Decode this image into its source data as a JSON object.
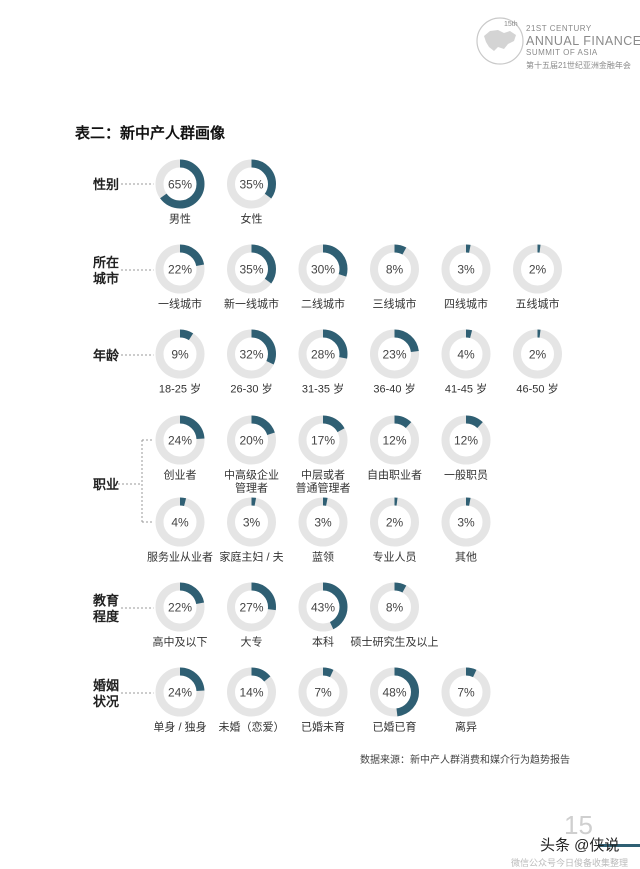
{
  "header": {
    "logo_line1": "21ST CENTURY",
    "logo_line2": "ANNUAL FINANCE",
    "logo_line3": "SUMMIT OF ASIA",
    "logo_line4": "第十五届21世纪亚洲金融年会",
    "logo_badge": "15th"
  },
  "title": "表二：新中产人群画像",
  "source": "数据来源：新中产人群消费和媒介行为趋势报告",
  "page_number": "15",
  "watermark": {
    "line1": "头条 @侠说",
    "line2": "微信公众号今日俊备收集整理"
  },
  "colors": {
    "fill": "#2f5f73",
    "track": "#e5e5e5"
  },
  "chart_data": {
    "type": "donut",
    "groups": [
      {
        "label": "性别",
        "items": [
          {
            "label": "男性",
            "value": 65
          },
          {
            "label": "女性",
            "value": 35
          }
        ]
      },
      {
        "label": "所在\n城市",
        "items": [
          {
            "label": "一线城市",
            "value": 22
          },
          {
            "label": "新一线城市",
            "value": 35
          },
          {
            "label": "二线城市",
            "value": 30
          },
          {
            "label": "三线城市",
            "value": 8
          },
          {
            "label": "四线城市",
            "value": 3
          },
          {
            "label": "五线城市",
            "value": 2
          }
        ]
      },
      {
        "label": "年龄",
        "items": [
          {
            "label": "18-25 岁",
            "value": 9
          },
          {
            "label": "26-30 岁",
            "value": 32
          },
          {
            "label": "31-35 岁",
            "value": 28
          },
          {
            "label": "36-40 岁",
            "value": 23
          },
          {
            "label": "41-45 岁",
            "value": 4
          },
          {
            "label": "46-50 岁",
            "value": 2
          }
        ]
      },
      {
        "label": "职业",
        "items": [
          {
            "label": "创业者",
            "value": 24
          },
          {
            "label": "中高级企业\n管理者",
            "value": 20
          },
          {
            "label": "中层或者\n普通管理者",
            "value": 17
          },
          {
            "label": "自由职业者",
            "value": 12
          },
          {
            "label": "一般职员",
            "value": 12
          },
          {
            "label": "服务业从业者",
            "value": 4
          },
          {
            "label": "家庭主妇 / 夫",
            "value": 3
          },
          {
            "label": "蓝领",
            "value": 3
          },
          {
            "label": "专业人员",
            "value": 2
          },
          {
            "label": "其他",
            "value": 3
          }
        ]
      },
      {
        "label": "教育\n程度",
        "items": [
          {
            "label": "高中及以下",
            "value": 22
          },
          {
            "label": "大专",
            "value": 27
          },
          {
            "label": "本科",
            "value": 43
          },
          {
            "label": "硕士研究生及以上",
            "value": 8
          }
        ]
      },
      {
        "label": "婚姻\n状况",
        "items": [
          {
            "label": "单身 / 独身",
            "value": 24
          },
          {
            "label": "未婚（恋爱）",
            "value": 14
          },
          {
            "label": "已婚未育",
            "value": 7
          },
          {
            "label": "已婚已育",
            "value": 48
          },
          {
            "label": "离异",
            "value": 7
          }
        ]
      }
    ]
  }
}
